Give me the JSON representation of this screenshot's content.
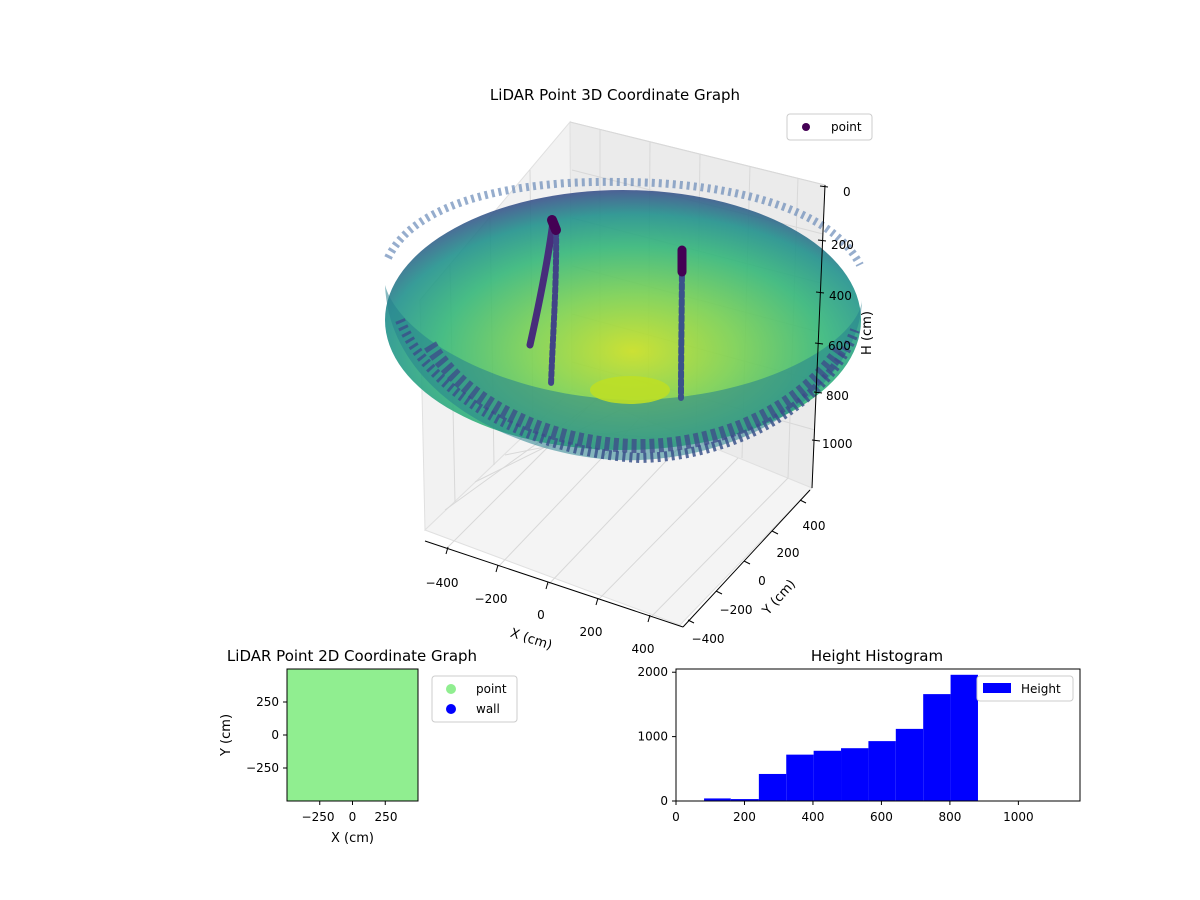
{
  "chart_data": [
    {
      "type": "scatter",
      "title": "LiDAR Point 3D Coordinate Graph",
      "xlabel": "X (cm)",
      "ylabel": "Y (cm)",
      "zlabel": "H (cm)",
      "xlim": [
        -500,
        500
      ],
      "ylim": [
        -500,
        500
      ],
      "zlim": [
        0,
        1100
      ],
      "z_inverted": true,
      "x_ticks": [
        "−400",
        "−200",
        "0",
        "200",
        "400"
      ],
      "y_ticks": [
        "−400",
        "−200",
        "0",
        "200",
        "400"
      ],
      "z_ticks": [
        "0",
        "200",
        "400",
        "600",
        "800",
        "1000"
      ],
      "colormap": "viridis",
      "legend": {
        "placement": "top-right",
        "entries": [
          "point"
        ]
      },
      "series": [
        {
          "name": "point",
          "shape": "bowl",
          "rim_height": 250,
          "bottom_height": 1000,
          "radius": 450
        }
      ],
      "grid": true
    },
    {
      "type": "scatter",
      "title": "LiDAR Point 2D Coordinate Graph",
      "xlabel": "X (cm)",
      "ylabel": "Y (cm)",
      "xlim": [
        -500,
        500
      ],
      "ylim": [
        -500,
        500
      ],
      "x_ticks": [
        "−250",
        "0",
        "250"
      ],
      "y_ticks": [
        "250",
        "0",
        "−250"
      ],
      "legend": {
        "placement": "outside-right",
        "entries": [
          "point",
          "wall"
        ]
      },
      "series": [
        {
          "name": "point",
          "color": "#90ee90"
        },
        {
          "name": "wall",
          "color": "#0000ff"
        }
      ]
    },
    {
      "type": "bar",
      "title": "Height Histogram",
      "xlim": [
        0,
        1180
      ],
      "ylim": [
        0,
        2050
      ],
      "x_ticks": [
        "0",
        "200",
        "400",
        "600",
        "800",
        "1000"
      ],
      "y_ticks": [
        "0",
        "1000",
        "2000"
      ],
      "legend": {
        "placement": "top-right",
        "entries": [
          "Height"
        ]
      },
      "series": [
        {
          "name": "Height",
          "color": "#0000ff",
          "bins": [
            {
              "x0": 82,
              "x1": 160,
              "count": 40
            },
            {
              "x0": 160,
              "x1": 242,
              "count": 30
            },
            {
              "x0": 242,
              "x1": 322,
              "count": 420
            },
            {
              "x0": 322,
              "x1": 402,
              "count": 720
            },
            {
              "x0": 402,
              "x1": 482,
              "count": 780
            },
            {
              "x0": 482,
              "x1": 562,
              "count": 820
            },
            {
              "x0": 562,
              "x1": 642,
              "count": 930
            },
            {
              "x0": 642,
              "x1": 722,
              "count": 1120
            },
            {
              "x0": 722,
              "x1": 802,
              "count": 1660
            },
            {
              "x0": 802,
              "x1": 882,
              "count": 1960
            }
          ]
        }
      ]
    }
  ]
}
